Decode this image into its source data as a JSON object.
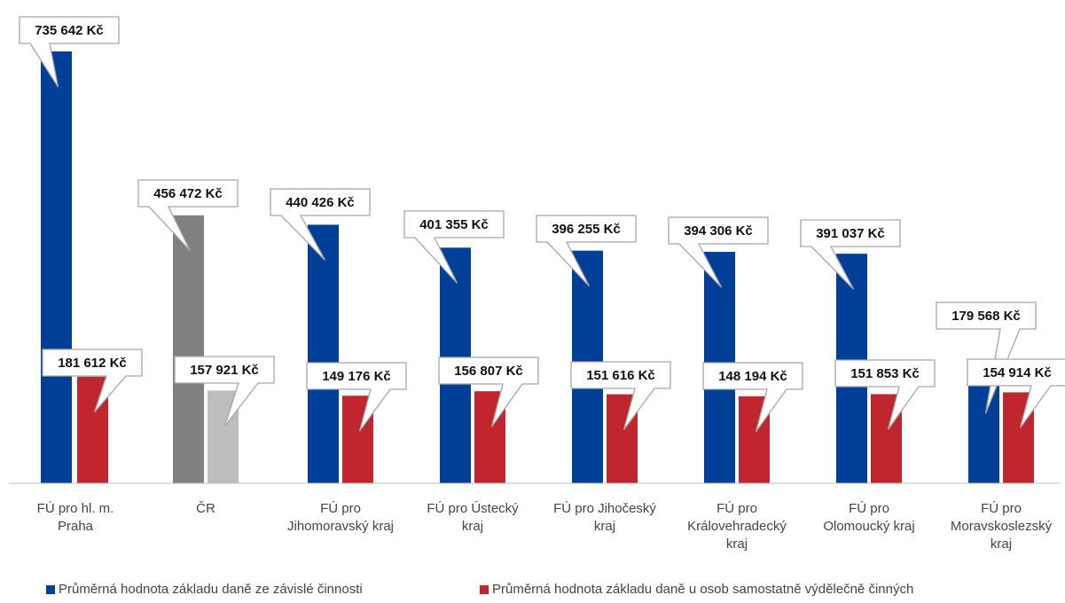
{
  "chart_data": {
    "type": "bar",
    "categories": [
      [
        "FÚ pro hl. m.",
        "Praha"
      ],
      [
        "ČR"
      ],
      [
        "FÚ pro",
        "Jihomoravský kraj"
      ],
      [
        "FÚ pro Ústecký",
        "kraj"
      ],
      [
        "FÚ pro Jihočeský",
        "kraj"
      ],
      [
        "FÚ pro",
        "Královehradecký",
        "kraj"
      ],
      [
        "FÚ pro",
        "Olomoucký kraj"
      ],
      [
        "FÚ pro",
        "Moravskoslezský",
        "kraj"
      ]
    ],
    "series": [
      {
        "name": "Průměrná hodnota základu daně ze závislé činnosti",
        "values": [
          735642,
          456472,
          440426,
          401355,
          396255,
          394306,
          391037,
          179568
        ],
        "labels": [
          "735 642 Kč",
          "456 472 Kč",
          "440 426 Kč",
          "401 355 Kč",
          "396 255 Kč",
          "394 306 Kč",
          "391 037 Kč",
          "179 568 Kč"
        ],
        "color": "#003f98",
        "highlight_color": "#808080"
      },
      {
        "name": "Průměrná hodnota základu daně u osob samostatně výdělečně činných",
        "values": [
          181612,
          157921,
          149176,
          156807,
          151616,
          148194,
          151853,
          154914
        ],
        "labels": [
          "181 612 Kč",
          "157 921 Kč",
          "149 176 Kč",
          "156 807 Kč",
          "151 616 Kč",
          "148 194 Kč",
          "151 853 Kč",
          "154 914 Kč"
        ],
        "color": "#c0262d",
        "highlight_color": "#bdbdbd"
      }
    ],
    "highlight_category_index": 1,
    "ylim": [
      0,
      735642
    ],
    "grid": false,
    "legend_position": "bottom",
    "data_label_style": "callout"
  }
}
